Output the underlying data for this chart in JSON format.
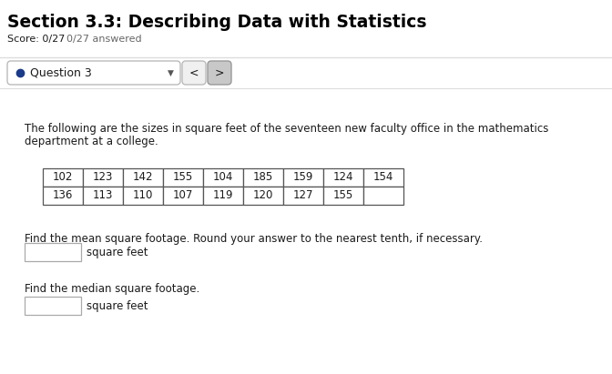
{
  "title": "Section 3.3: Describing Data with Statistics",
  "score_text1": "Score: 0/27",
  "score_text2": "0/27 answered",
  "question_label": "Question 3",
  "desc_line1": "The following are the sizes in square feet of the seventeen new faculty office in the mathematics",
  "desc_line2": "department at a college.",
  "table_row1": [
    "102",
    "123",
    "142",
    "155",
    "104",
    "185",
    "159",
    "124",
    "154"
  ],
  "table_row2": [
    "136",
    "113",
    "110",
    "107",
    "119",
    "120",
    "127",
    "155",
    ""
  ],
  "mean_label": "Find the mean square footage. Round your answer to the nearest tenth, if necessary.",
  "median_label": "Find the median square footage.",
  "unit_label": "square feet",
  "bg_color": "#ffffff",
  "text_color": "#1a1a1a",
  "title_color": "#000000",
  "score_color": "#666666",
  "nav_bg": "#f5f5f5",
  "nav_border": "#bbbbbb",
  "dot_color": "#1a3a8a",
  "table_border_color": "#555555",
  "input_box_color": "#ffffff",
  "input_box_border": "#aaaaaa",
  "sep_line_color": "#dddddd",
  "arrow_active_bg": "#c8c8c8",
  "arrow_inactive_bg": "#f0f0f0"
}
